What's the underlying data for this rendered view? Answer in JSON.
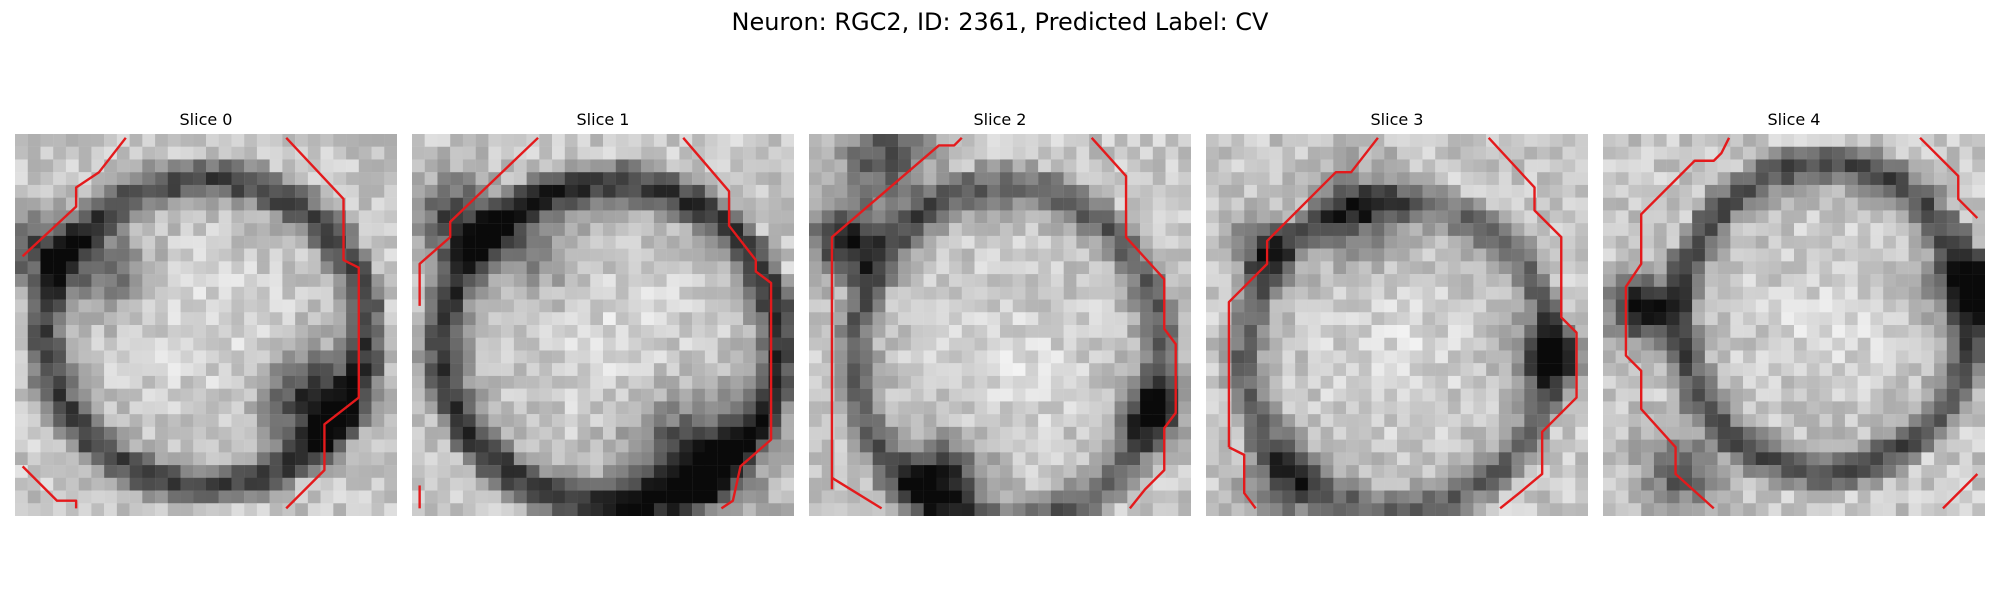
{
  "figure": {
    "title": "Neuron: RGC2, ID: 2361, Predicted Label: CV"
  },
  "panels": [
    {
      "title": "Slice 0",
      "contour_color": "#e41a1c",
      "contours": [
        [
          [
            0.02,
            0.32
          ],
          [
            0.16,
            0.19
          ],
          [
            0.16,
            0.14
          ],
          [
            0.22,
            0.1
          ],
          [
            0.29,
            0.01
          ]
        ],
        [
          [
            0.71,
            0.01
          ],
          [
            0.86,
            0.17
          ],
          [
            0.86,
            0.33
          ],
          [
            0.9,
            0.35
          ],
          [
            0.9,
            0.69
          ],
          [
            0.81,
            0.76
          ],
          [
            0.81,
            0.88
          ],
          [
            0.71,
            0.98
          ]
        ],
        [
          [
            0.02,
            0.87
          ],
          [
            0.11,
            0.96
          ],
          [
            0.16,
            0.96
          ],
          [
            0.16,
            0.98
          ]
        ]
      ]
    },
    {
      "title": "Slice 1",
      "contour_color": "#e41a1c",
      "contours": [
        [
          [
            0.02,
            0.45
          ],
          [
            0.02,
            0.34
          ],
          [
            0.1,
            0.27
          ],
          [
            0.1,
            0.23
          ],
          [
            0.33,
            0.01
          ]
        ],
        [
          [
            0.71,
            0.01
          ],
          [
            0.83,
            0.15
          ],
          [
            0.83,
            0.24
          ],
          [
            0.9,
            0.33
          ],
          [
            0.9,
            0.36
          ],
          [
            0.94,
            0.39
          ],
          [
            0.94,
            0.8
          ],
          [
            0.86,
            0.87
          ],
          [
            0.84,
            0.96
          ],
          [
            0.81,
            0.98
          ]
        ],
        [
          [
            0.02,
            0.92
          ],
          [
            0.02,
            0.98
          ]
        ]
      ]
    },
    {
      "title": "Slice 2",
      "contour_color": "#e41a1c",
      "contours": [
        [
          [
            0.06,
            0.93
          ],
          [
            0.06,
            0.27
          ],
          [
            0.34,
            0.03
          ],
          [
            0.38,
            0.03
          ],
          [
            0.4,
            0.01
          ]
        ],
        [
          [
            0.74,
            0.01
          ],
          [
            0.83,
            0.11
          ],
          [
            0.83,
            0.27
          ],
          [
            0.93,
            0.38
          ],
          [
            0.93,
            0.51
          ],
          [
            0.96,
            0.55
          ],
          [
            0.96,
            0.73
          ],
          [
            0.93,
            0.77
          ],
          [
            0.93,
            0.88
          ],
          [
            0.88,
            0.93
          ],
          [
            0.84,
            0.98
          ]
        ],
        [
          [
            0.06,
            0.9
          ],
          [
            0.19,
            0.98
          ]
        ]
      ]
    },
    {
      "title": "Slice 3",
      "contour_color": "#e41a1c",
      "contours": [
        [
          [
            0.06,
            0.82
          ],
          [
            0.06,
            0.44
          ],
          [
            0.16,
            0.34
          ],
          [
            0.16,
            0.28
          ],
          [
            0.34,
            0.1
          ],
          [
            0.38,
            0.1
          ],
          [
            0.45,
            0.01
          ]
        ],
        [
          [
            0.74,
            0.01
          ],
          [
            0.86,
            0.14
          ],
          [
            0.86,
            0.2
          ],
          [
            0.93,
            0.27
          ],
          [
            0.93,
            0.48
          ],
          [
            0.97,
            0.52
          ],
          [
            0.97,
            0.69
          ],
          [
            0.88,
            0.78
          ],
          [
            0.88,
            0.89
          ],
          [
            0.82,
            0.94
          ],
          [
            0.77,
            0.98
          ]
        ],
        [
          [
            0.06,
            0.82
          ],
          [
            0.1,
            0.84
          ],
          [
            0.1,
            0.94
          ],
          [
            0.13,
            0.98
          ]
        ]
      ]
    },
    {
      "title": "Slice 4",
      "contour_color": "#e41a1c",
      "contours": [
        [
          [
            0.29,
            0.98
          ],
          [
            0.19,
            0.89
          ],
          [
            0.19,
            0.82
          ],
          [
            0.1,
            0.72
          ],
          [
            0.1,
            0.62
          ],
          [
            0.06,
            0.58
          ],
          [
            0.06,
            0.4
          ],
          [
            0.1,
            0.34
          ],
          [
            0.1,
            0.21
          ],
          [
            0.24,
            0.07
          ],
          [
            0.29,
            0.07
          ],
          [
            0.31,
            0.05
          ],
          [
            0.33,
            0.01
          ]
        ],
        [
          [
            0.83,
            0.01
          ],
          [
            0.93,
            0.11
          ],
          [
            0.93,
            0.17
          ],
          [
            0.98,
            0.22
          ]
        ],
        [
          [
            0.89,
            0.98
          ],
          [
            0.98,
            0.89
          ]
        ]
      ]
    }
  ]
}
